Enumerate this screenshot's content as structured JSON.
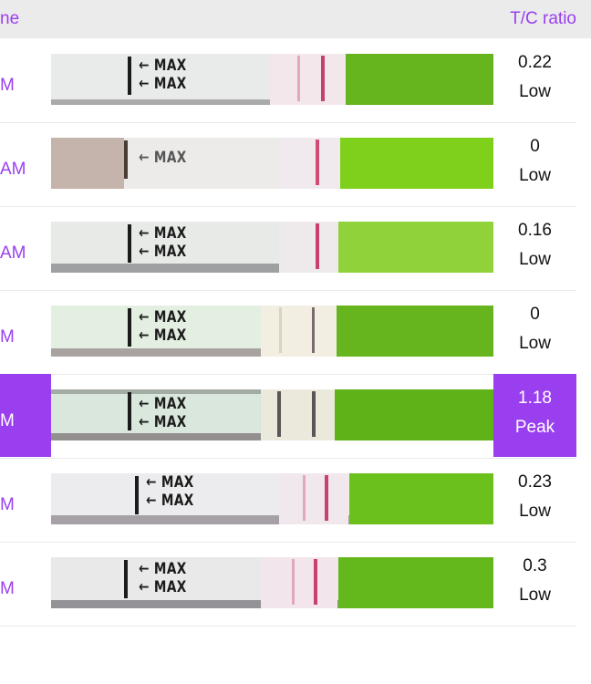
{
  "header": {
    "time_label": "ne",
    "ratio_label": "T/C ratio"
  },
  "colors": {
    "accent": "#9a3ff0",
    "control_green": "#67b51e",
    "test_line": "#c8406d"
  },
  "rows": [
    {
      "time": "M",
      "ratio": "0.22",
      "status": "Low"
    },
    {
      "time": "AM",
      "ratio": "0",
      "status": "Low"
    },
    {
      "time": "AM",
      "ratio": "0.16",
      "status": "Low"
    },
    {
      "time": "M",
      "ratio": "0",
      "status": "Low"
    },
    {
      "time": "M",
      "ratio": "1.18",
      "status": "Peak"
    },
    {
      "time": "M",
      "ratio": "0.23",
      "status": "Low"
    },
    {
      "time": "M",
      "ratio": "0.3",
      "status": "Low"
    }
  ],
  "strip": {
    "marker_1": "← MAX",
    "marker_2": "← MAX"
  }
}
